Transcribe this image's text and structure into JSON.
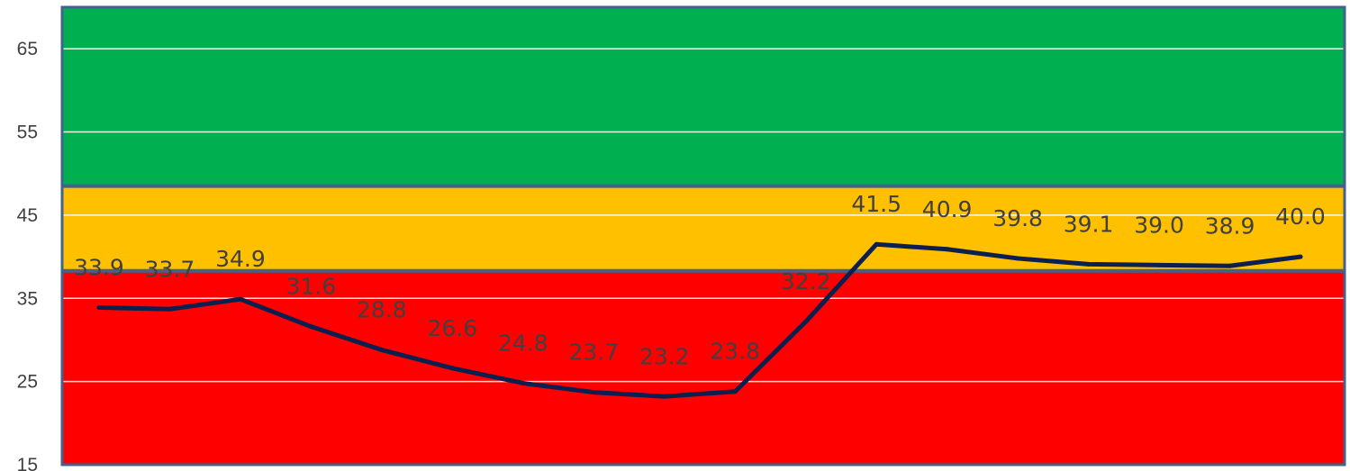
{
  "chart_data": {
    "type": "line",
    "title": "",
    "xlabel": "",
    "ylabel": "",
    "ylim": [
      15,
      70
    ],
    "yticks": [
      15,
      25,
      35,
      45,
      55,
      65
    ],
    "grid": true,
    "legend": "none",
    "bands": [
      {
        "name": "red",
        "from": 15,
        "to": 38.3,
        "color": "#ff0000"
      },
      {
        "name": "amber",
        "from": 38.3,
        "to": 48.5,
        "color": "#ffc000"
      },
      {
        "name": "green",
        "from": 48.5,
        "to": 70,
        "color": "#00b050"
      }
    ],
    "series": [
      {
        "color": "#0d1f4f",
        "values": [
          33.9,
          33.7,
          34.9,
          31.6,
          28.8,
          26.6,
          24.8,
          23.7,
          23.2,
          23.8,
          32.2,
          41.5,
          40.9,
          39.8,
          39.1,
          39.0,
          38.9,
          40.0
        ],
        "labels": [
          "33.9",
          "33.7",
          "34.9",
          "31.6",
          "28.8",
          "26.6",
          "24.8",
          "23.7",
          "23.2",
          "23.8",
          "32.2",
          "41.5",
          "40.9",
          "39.8",
          "39.1",
          "39.0",
          "38.9",
          "40.0"
        ]
      }
    ]
  }
}
